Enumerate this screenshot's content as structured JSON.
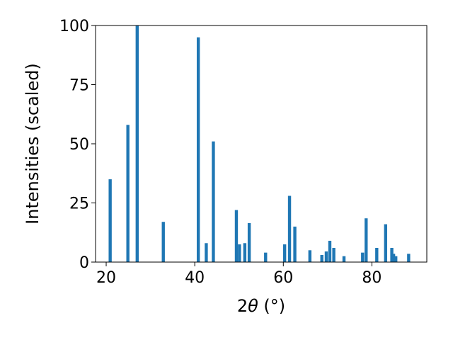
{
  "chart_data": {
    "type": "bar",
    "title": "",
    "xlabel_prefix": "2",
    "xlabel_theta": "θ",
    "xlabel_suffix": " (°)",
    "ylabel": "Intensities (scaled)",
    "xlim": [
      17.6,
      92.4
    ],
    "ylim": [
      0,
      100
    ],
    "bar_width_data_units": 0.7,
    "bar_color": "#1f77b4",
    "grid": false,
    "legend": "none",
    "x_ticks": [
      20,
      40,
      60,
      80
    ],
    "x_tick_labels": [
      "20",
      "40",
      "60",
      "80"
    ],
    "y_ticks": [
      0,
      25,
      50,
      75,
      100
    ],
    "y_tick_labels": [
      "0",
      "25",
      "50",
      "75",
      "100"
    ],
    "x": [
      20.9,
      24.9,
      27.0,
      32.9,
      40.8,
      42.6,
      44.2,
      49.4,
      50.1,
      51.3,
      52.3,
      56.0,
      60.3,
      61.4,
      62.6,
      66.0,
      68.7,
      69.7,
      70.5,
      71.4,
      73.7,
      77.9,
      78.7,
      81.1,
      83.1,
      84.5,
      84.9,
      85.4,
      88.3
    ],
    "values": [
      35,
      58,
      100,
      17,
      95,
      8,
      51,
      22,
      7.5,
      8,
      16.5,
      4,
      7.5,
      28,
      15,
      5,
      3,
      4.5,
      9,
      6,
      2.5,
      4,
      18.5,
      6,
      16,
      6,
      3.5,
      2.5,
      3.5
    ]
  }
}
